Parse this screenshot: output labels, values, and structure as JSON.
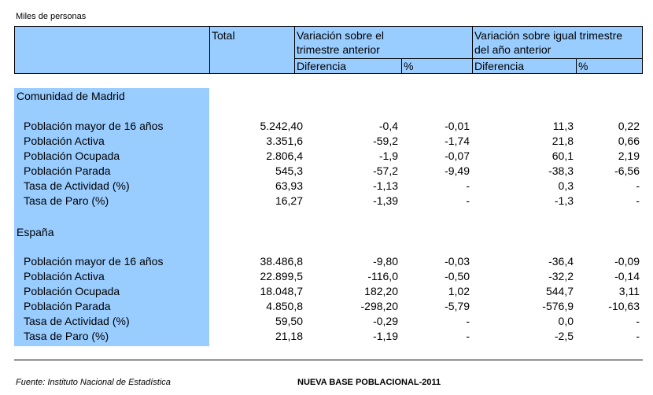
{
  "unit_label": "Miles de personas",
  "header": {
    "total": "Total",
    "var_trim_l1": "Variación sobre el",
    "var_trim_l2": "trimestre anterior",
    "var_anual_l1": "Variación sobre igual trimestre",
    "var_anual_l2": "del año anterior",
    "diferencia": "Diferencia",
    "pct": "%"
  },
  "sections": [
    {
      "title": "Comunidad de Madrid",
      "rows": [
        {
          "label": "Población mayor de 16 años",
          "total": "5.242,40",
          "dif_trim": "-0,4",
          "pct_trim": "-0,01",
          "dif_anual": "11,3",
          "pct_anual": "0,22"
        },
        {
          "label": "Población Activa",
          "total": "3.351,6",
          "dif_trim": "-59,2",
          "pct_trim": "-1,74",
          "dif_anual": "21,8",
          "pct_anual": "0,66"
        },
        {
          "label": "Población Ocupada",
          "total": "2.806,4",
          "dif_trim": "-1,9",
          "pct_trim": "-0,07",
          "dif_anual": "60,1",
          "pct_anual": "2,19"
        },
        {
          "label": "Población Parada",
          "total": "545,3",
          "dif_trim": "-57,2",
          "pct_trim": "-9,49",
          "dif_anual": "-38,3",
          "pct_anual": "-6,56"
        },
        {
          "label": "Tasa de Actividad (%)",
          "total": "63,93",
          "dif_trim": "-1,13",
          "pct_trim": "-",
          "dif_anual": "0,3",
          "pct_anual": "-"
        },
        {
          "label": "Tasa de Paro (%)",
          "total": "16,27",
          "dif_trim": "-1,39",
          "pct_trim": "-",
          "dif_anual": "-1,3",
          "pct_anual": "-"
        }
      ]
    },
    {
      "title": "España",
      "rows": [
        {
          "label": "Población mayor de 16 años",
          "total": "38.486,8",
          "dif_trim": "-9,80",
          "pct_trim": "-0,03",
          "dif_anual": "-36,4",
          "pct_anual": "-0,09"
        },
        {
          "label": "Población Activa",
          "total": "22.899,5",
          "dif_trim": "-116,0",
          "pct_trim": "-0,50",
          "dif_anual": "-32,2",
          "pct_anual": "-0,14"
        },
        {
          "label": "Población Ocupada",
          "total": "18.048,7",
          "dif_trim": "182,20",
          "pct_trim": "1,02",
          "dif_anual": "544,7",
          "pct_anual": "3,11"
        },
        {
          "label": "Población Parada",
          "total": "4.850,8",
          "dif_trim": "-298,20",
          "pct_trim": "-5,79",
          "dif_anual": "-576,9",
          "pct_anual": "-10,63"
        },
        {
          "label": "Tasa de Actividad (%)",
          "total": "59,50",
          "dif_trim": "-0,29",
          "pct_trim": "-",
          "dif_anual": "0,0",
          "pct_anual": "-"
        },
        {
          "label": "Tasa de Paro (%)",
          "total": "21,18",
          "dif_trim": "-1,19",
          "pct_trim": "-",
          "dif_anual": "-2,5",
          "pct_anual": "-"
        }
      ]
    }
  ],
  "footer": {
    "source": "Fuente: Instituto Nacional de Estadística",
    "base": "NUEVA BASE POBLACIONAL-2011"
  }
}
